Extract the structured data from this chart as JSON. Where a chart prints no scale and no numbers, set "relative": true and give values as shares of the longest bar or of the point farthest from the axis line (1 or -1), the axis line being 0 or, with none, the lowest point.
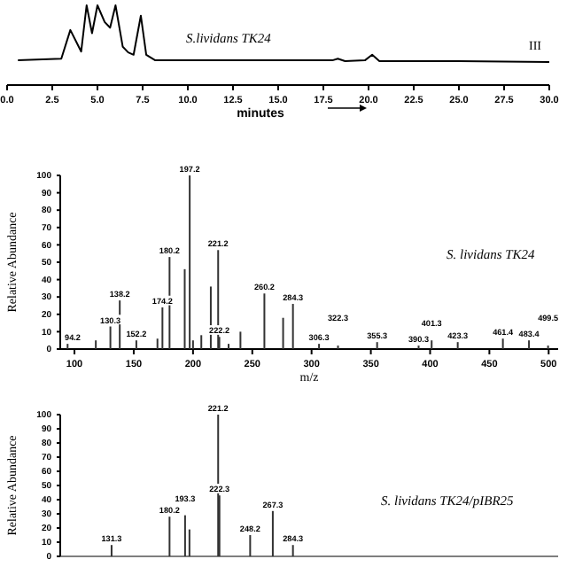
{
  "chart_data": [
    {
      "type": "line",
      "relative": true,
      "x": [
        0.6,
        3.0,
        3.5,
        4.1,
        4.4,
        4.7,
        5.0,
        5.4,
        5.7,
        6.0,
        6.4,
        6.7,
        7.0,
        7.4,
        7.7,
        8.2,
        12.0,
        16.0,
        18.0,
        18.3,
        18.7,
        19.8,
        20.2,
        20.6,
        25.0,
        30.0
      ],
      "series": [
        {
          "color": "#000000",
          "values": [
            0.31,
            0.33,
            0.69,
            0.42,
            1,
            0.65,
            1,
            0.79,
            0.72,
            1,
            0.48,
            0.41,
            0.38,
            0.87,
            0.38,
            0.31,
            0.31,
            0.31,
            0.31,
            0.33,
            0.3,
            0.31,
            0.38,
            0.3,
            0.3,
            0.29
          ]
        }
      ],
      "xlim": [
        0,
        30
      ],
      "xticks": [
        {
          "value": 0,
          "label": "0.0"
        },
        {
          "value": 2.5,
          "label": "2.5"
        },
        {
          "value": 5,
          "label": "5.0"
        },
        {
          "value": 7.5,
          "label": "7.5"
        },
        {
          "value": 10,
          "label": "10.0"
        },
        {
          "value": 12.5,
          "label": "12.5"
        },
        {
          "value": 15,
          "label": "15.0"
        },
        {
          "value": 17.5,
          "label": "17.5"
        },
        {
          "value": 20,
          "label": "20.0"
        },
        {
          "value": 22.5,
          "label": "22.5"
        },
        {
          "value": 25,
          "label": "25.0"
        },
        {
          "value": 27.5,
          "label": "27.5"
        },
        {
          "value": 30,
          "label": "30.0"
        }
      ],
      "xlabel": "minutes",
      "tick_labels": "x",
      "annotations": [
        "S.lividans TK24",
        "III"
      ]
    },
    {
      "type": "bar",
      "x": [
        94.2,
        118,
        130.3,
        138.2,
        152.2,
        170,
        174.2,
        180.2,
        193,
        197.2,
        200,
        207,
        215,
        221.2,
        222.2,
        230,
        240,
        260.2,
        276,
        284.3,
        306.3,
        322.3,
        355.3,
        390.3,
        401.3,
        423.3,
        461.4,
        483.4,
        499.5
      ],
      "series": [
        {
          "color": "#333333",
          "values": [
            3,
            5,
            13,
            28,
            5,
            6,
            24,
            53,
            46,
            100,
            5,
            8,
            36,
            57,
            7,
            3,
            10,
            32,
            18,
            26,
            3,
            2,
            4,
            2,
            5,
            4,
            6,
            5,
            2
          ]
        }
      ],
      "xlim": [
        88,
        508
      ],
      "xticks": [
        100,
        150,
        200,
        250,
        300,
        350,
        400,
        450,
        500
      ],
      "ylim": [
        0,
        100
      ],
      "yticks": [
        0,
        10,
        20,
        30,
        40,
        50,
        60,
        70,
        80,
        90,
        100
      ],
      "xlabel": "m/z",
      "ylabel": "Relative Abundance",
      "annotations": [
        "S. lividans TK24",
        {
          "text": "94.2",
          "x": 94.2,
          "y": 3
        },
        {
          "text": "130.3",
          "x": 130.3,
          "y": 13
        },
        {
          "text": "138.2",
          "x": 138.2,
          "y": 28
        },
        {
          "text": "152.2",
          "x": 152.2,
          "y": 5
        },
        {
          "text": "174.2",
          "x": 174.2,
          "y": 24
        },
        {
          "text": "180.2",
          "x": 180.2,
          "y": 53
        },
        {
          "text": "197.2",
          "x": 197.2,
          "y": 100
        },
        {
          "text": "221.2",
          "x": 221.2,
          "y": 57
        },
        {
          "text": "222.2",
          "x": 222.2,
          "y": 7
        },
        {
          "text": "260.2",
          "x": 260.2,
          "y": 32
        },
        {
          "text": "284.3",
          "x": 284.3,
          "y": 26
        },
        {
          "text": "306.3",
          "x": 306.3,
          "y": 3
        },
        {
          "text": "322.3",
          "x": 322.3,
          "y": 2
        },
        {
          "text": "355.3",
          "x": 355.3,
          "y": 4
        },
        {
          "text": "390.3",
          "x": 390.3,
          "y": 2
        },
        {
          "text": "401.3",
          "x": 401.3,
          "y": 5
        },
        {
          "text": "423.3",
          "x": 423.3,
          "y": 4
        },
        {
          "text": "461.4",
          "x": 461.4,
          "y": 6
        },
        {
          "text": "483.4",
          "x": 483.4,
          "y": 5
        },
        {
          "text": "499.5",
          "x": 499.5,
          "y": 2
        }
      ]
    },
    {
      "type": "bar",
      "x": [
        131.3,
        180.2,
        193.3,
        197,
        221.2,
        222.3,
        248.2,
        267.3,
        284.3
      ],
      "series": [
        {
          "color": "#333333",
          "values": [
            8,
            28,
            29,
            19,
            100,
            43,
            15,
            32,
            8
          ]
        }
      ],
      "xlim": [
        88,
        508
      ],
      "ylim": [
        0,
        100
      ],
      "yticks": [
        0,
        10,
        20,
        30,
        40,
        50,
        60,
        70,
        80,
        90,
        100
      ],
      "tick_labels": "y",
      "ylabel": "Relative Abundance",
      "annotations": [
        "S. lividans TK24/pIBR25",
        {
          "text": "131.3",
          "x": 131.3,
          "y": 8
        },
        {
          "text": "180.2",
          "x": 180.2,
          "y": 28
        },
        {
          "text": "193.3",
          "x": 193.3,
          "y": 29
        },
        {
          "text": "221.2",
          "x": 221.2,
          "y": 100
        },
        {
          "text": "222.3",
          "x": 222.3,
          "y": 43
        },
        {
          "text": "248.2",
          "x": 248.2,
          "y": 15
        },
        {
          "text": "267.3",
          "x": 267.3,
          "y": 32
        },
        {
          "text": "284.3",
          "x": 284.3,
          "y": 8
        }
      ]
    }
  ]
}
